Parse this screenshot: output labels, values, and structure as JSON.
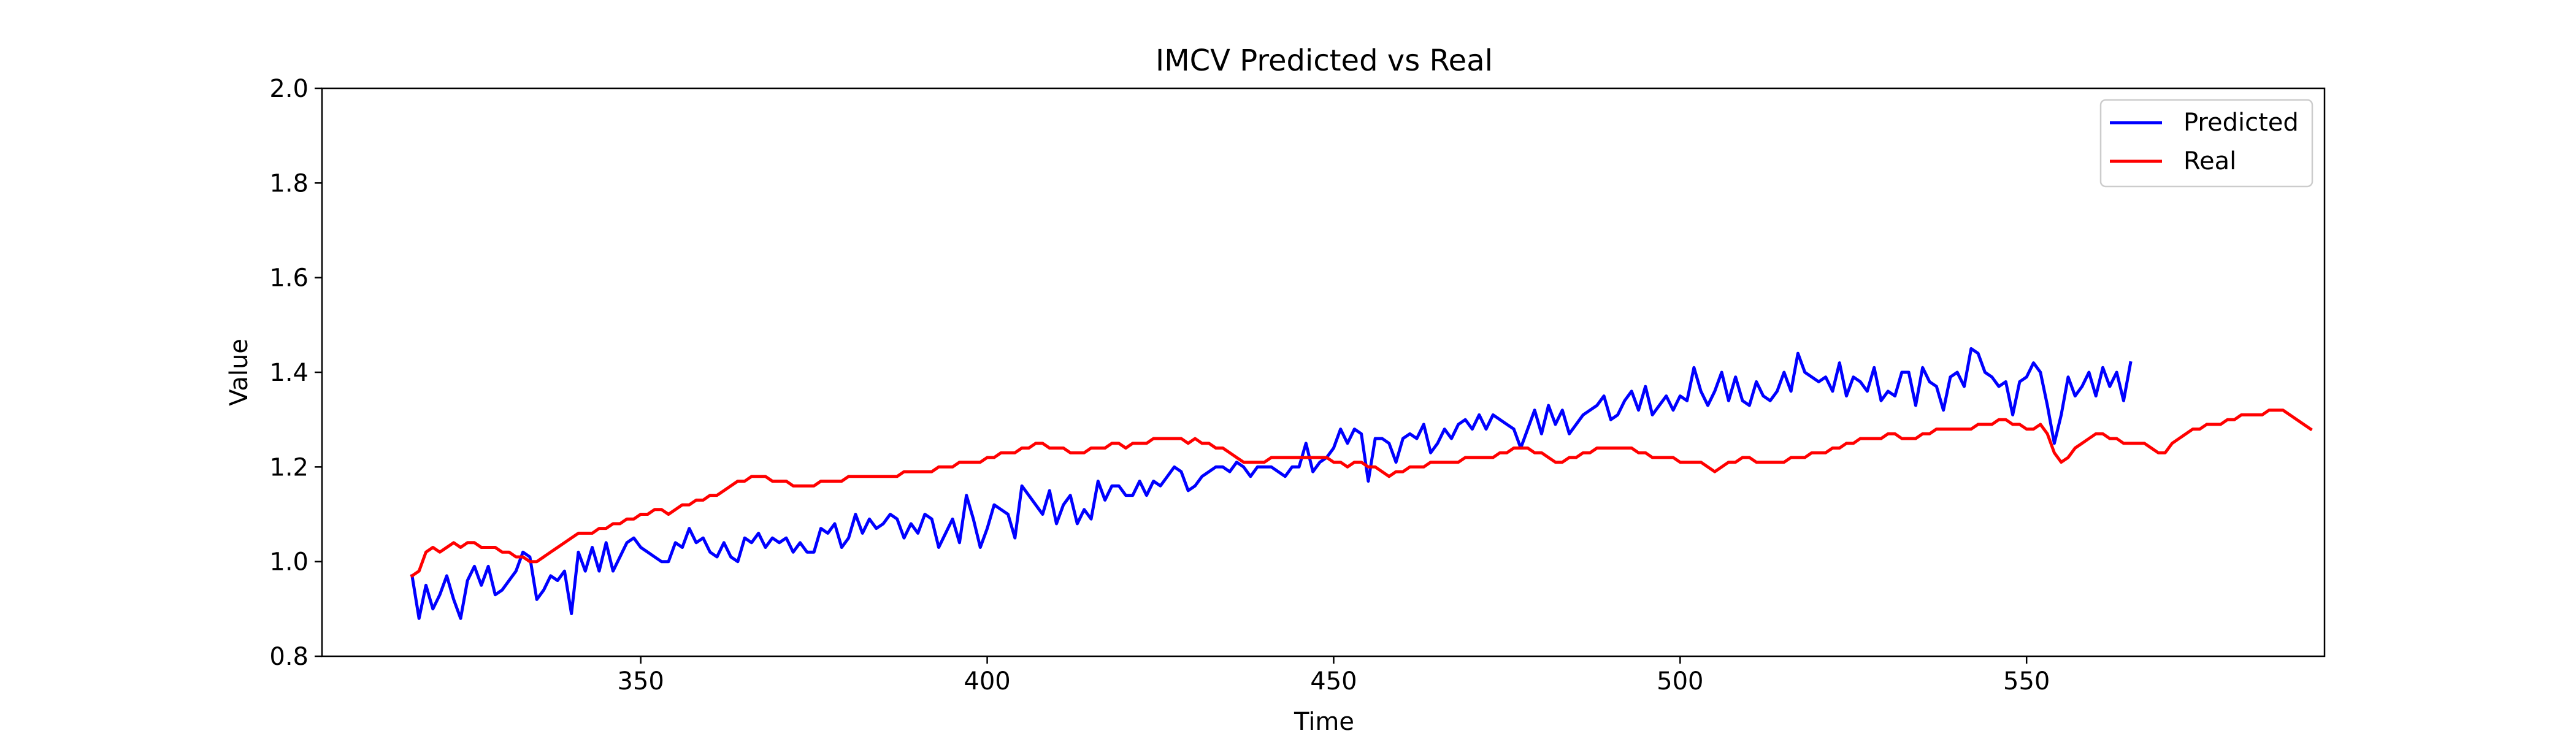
{
  "chart_data": {
    "type": "line",
    "title": "IMCV Predicted vs Real",
    "xlabel": "Time",
    "ylabel": "Value",
    "xlim": [
      304,
      593
    ],
    "ylim": [
      0.8,
      2.0
    ],
    "xticks": [
      350,
      400,
      450,
      500,
      550
    ],
    "yticks": [
      0.8,
      1.0,
      1.2,
      1.4,
      1.6,
      1.8,
      2.0
    ],
    "xtick_labels": [
      "350",
      "400",
      "450",
      "500",
      "550"
    ],
    "ytick_labels": [
      "0.8",
      "1.0",
      "1.2",
      "1.4",
      "1.6",
      "1.8",
      "2.0"
    ],
    "grid": false,
    "legend_position": "top-right",
    "series": [
      {
        "name": "Predicted",
        "color": "#0000ff",
        "x_start": 317,
        "x_step": 1,
        "values": [
          0.97,
          0.88,
          0.95,
          0.9,
          0.93,
          0.97,
          0.92,
          0.88,
          0.96,
          0.99,
          0.95,
          0.99,
          0.93,
          0.94,
          0.96,
          0.98,
          1.02,
          1.01,
          0.92,
          0.94,
          0.97,
          0.96,
          0.98,
          0.89,
          1.02,
          0.98,
          1.03,
          0.98,
          1.04,
          0.98,
          1.01,
          1.04,
          1.05,
          1.03,
          1.02,
          1.01,
          1.0,
          1.0,
          1.04,
          1.03,
          1.07,
          1.04,
          1.05,
          1.02,
          1.01,
          1.04,
          1.01,
          1.0,
          1.05,
          1.04,
          1.06,
          1.03,
          1.05,
          1.04,
          1.05,
          1.02,
          1.04,
          1.02,
          1.02,
          1.07,
          1.06,
          1.08,
          1.03,
          1.05,
          1.1,
          1.06,
          1.09,
          1.07,
          1.08,
          1.1,
          1.09,
          1.05,
          1.08,
          1.06,
          1.1,
          1.09,
          1.03,
          1.06,
          1.09,
          1.04,
          1.14,
          1.09,
          1.03,
          1.07,
          1.12,
          1.11,
          1.1,
          1.05,
          1.16,
          1.14,
          1.12,
          1.1,
          1.15,
          1.08,
          1.12,
          1.14,
          1.08,
          1.11,
          1.09,
          1.17,
          1.13,
          1.16,
          1.16,
          1.14,
          1.14,
          1.17,
          1.14,
          1.17,
          1.16,
          1.18,
          1.2,
          1.19,
          1.15,
          1.16,
          1.18,
          1.19,
          1.2,
          1.2,
          1.19,
          1.21,
          1.2,
          1.18,
          1.2,
          1.2,
          1.2,
          1.19,
          1.18,
          1.2,
          1.2,
          1.25,
          1.19,
          1.21,
          1.22,
          1.24,
          1.28,
          1.25,
          1.28,
          1.27,
          1.17,
          1.26,
          1.26,
          1.25,
          1.21,
          1.26,
          1.27,
          1.26,
          1.29,
          1.23,
          1.25,
          1.28,
          1.26,
          1.29,
          1.3,
          1.28,
          1.31,
          1.28,
          1.31,
          1.3,
          1.29,
          1.28,
          1.24,
          1.28,
          1.32,
          1.27,
          1.33,
          1.29,
          1.32,
          1.27,
          1.29,
          1.31,
          1.32,
          1.33,
          1.35,
          1.3,
          1.31,
          1.34,
          1.36,
          1.32,
          1.37,
          1.31,
          1.33,
          1.35,
          1.32,
          1.35,
          1.34,
          1.41,
          1.36,
          1.33,
          1.36,
          1.4,
          1.34,
          1.39,
          1.34,
          1.33,
          1.38,
          1.35,
          1.34,
          1.36,
          1.4,
          1.36,
          1.44,
          1.4,
          1.39,
          1.38,
          1.39,
          1.36,
          1.42,
          1.35,
          1.39,
          1.38,
          1.36,
          1.41,
          1.34,
          1.36,
          1.35,
          1.4,
          1.4,
          1.33,
          1.41,
          1.38,
          1.37,
          1.32,
          1.39,
          1.4,
          1.37,
          1.45,
          1.44,
          1.4,
          1.39,
          1.37,
          1.38,
          1.31,
          1.38,
          1.39,
          1.42,
          1.4,
          1.33,
          1.25,
          1.31,
          1.39,
          1.35,
          1.37,
          1.4,
          1.35,
          1.41,
          1.37,
          1.4,
          1.34,
          1.42
        ]
      },
      {
        "name": "Real",
        "color": "#ff0000",
        "x_start": 317,
        "x_step": 1,
        "values": [
          0.97,
          0.98,
          1.02,
          1.03,
          1.02,
          1.03,
          1.04,
          1.03,
          1.04,
          1.04,
          1.03,
          1.03,
          1.03,
          1.02,
          1.02,
          1.01,
          1.01,
          1.0,
          1.0,
          1.01,
          1.02,
          1.03,
          1.04,
          1.05,
          1.06,
          1.06,
          1.06,
          1.07,
          1.07,
          1.08,
          1.08,
          1.09,
          1.09,
          1.1,
          1.1,
          1.11,
          1.11,
          1.1,
          1.11,
          1.12,
          1.12,
          1.13,
          1.13,
          1.14,
          1.14,
          1.15,
          1.16,
          1.17,
          1.17,
          1.18,
          1.18,
          1.18,
          1.17,
          1.17,
          1.17,
          1.16,
          1.16,
          1.16,
          1.16,
          1.17,
          1.17,
          1.17,
          1.17,
          1.18,
          1.18,
          1.18,
          1.18,
          1.18,
          1.18,
          1.18,
          1.18,
          1.19,
          1.19,
          1.19,
          1.19,
          1.19,
          1.2,
          1.2,
          1.2,
          1.21,
          1.21,
          1.21,
          1.21,
          1.22,
          1.22,
          1.23,
          1.23,
          1.23,
          1.24,
          1.24,
          1.25,
          1.25,
          1.24,
          1.24,
          1.24,
          1.23,
          1.23,
          1.23,
          1.24,
          1.24,
          1.24,
          1.25,
          1.25,
          1.24,
          1.25,
          1.25,
          1.25,
          1.26,
          1.26,
          1.26,
          1.26,
          1.26,
          1.25,
          1.26,
          1.25,
          1.25,
          1.24,
          1.24,
          1.23,
          1.22,
          1.21,
          1.21,
          1.21,
          1.21,
          1.22,
          1.22,
          1.22,
          1.22,
          1.22,
          1.22,
          1.22,
          1.22,
          1.22,
          1.21,
          1.21,
          1.2,
          1.21,
          1.21,
          1.2,
          1.2,
          1.19,
          1.18,
          1.19,
          1.19,
          1.2,
          1.2,
          1.2,
          1.21,
          1.21,
          1.21,
          1.21,
          1.21,
          1.22,
          1.22,
          1.22,
          1.22,
          1.22,
          1.23,
          1.23,
          1.24,
          1.24,
          1.24,
          1.23,
          1.23,
          1.22,
          1.21,
          1.21,
          1.22,
          1.22,
          1.23,
          1.23,
          1.24,
          1.24,
          1.24,
          1.24,
          1.24,
          1.24,
          1.23,
          1.23,
          1.22,
          1.22,
          1.22,
          1.22,
          1.21,
          1.21,
          1.21,
          1.21,
          1.2,
          1.19,
          1.2,
          1.21,
          1.21,
          1.22,
          1.22,
          1.21,
          1.21,
          1.21,
          1.21,
          1.21,
          1.22,
          1.22,
          1.22,
          1.23,
          1.23,
          1.23,
          1.24,
          1.24,
          1.25,
          1.25,
          1.26,
          1.26,
          1.26,
          1.26,
          1.27,
          1.27,
          1.26,
          1.26,
          1.26,
          1.27,
          1.27,
          1.28,
          1.28,
          1.28,
          1.28,
          1.28,
          1.28,
          1.29,
          1.29,
          1.29,
          1.3,
          1.3,
          1.29,
          1.29,
          1.28,
          1.28,
          1.29,
          1.27,
          1.23,
          1.21,
          1.22,
          1.24,
          1.25,
          1.26,
          1.27,
          1.27,
          1.26,
          1.26,
          1.25,
          1.25,
          1.25,
          1.25,
          1.24,
          1.23,
          1.23,
          1.25,
          1.26,
          1.27,
          1.28,
          1.28,
          1.29,
          1.29,
          1.29,
          1.3,
          1.3,
          1.31,
          1.31,
          1.31,
          1.31,
          1.32,
          1.32,
          1.32,
          1.31,
          1.3,
          1.29,
          1.28
        ]
      }
    ]
  }
}
